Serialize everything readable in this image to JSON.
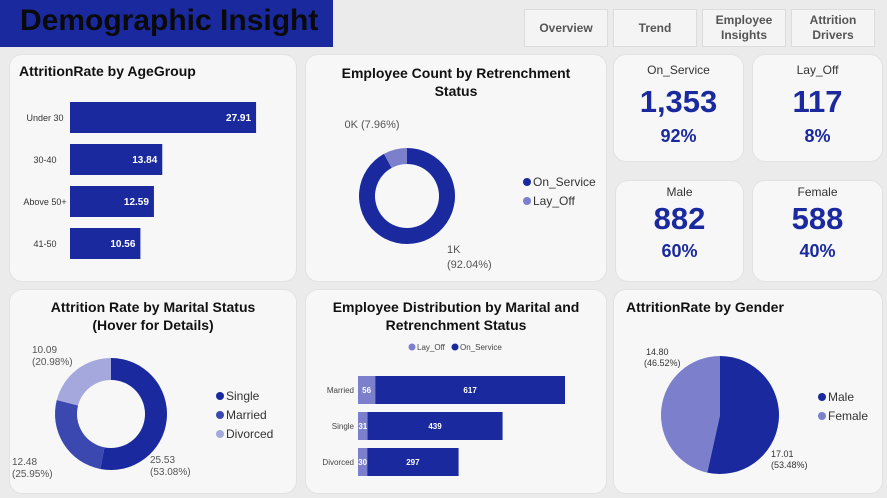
{
  "header": {
    "title": "Demographic Insight"
  },
  "nav": [
    {
      "label": "Overview"
    },
    {
      "label": "Trend"
    },
    {
      "label": "Employee Insights"
    },
    {
      "label": "Attrition Drivers"
    }
  ],
  "colors": {
    "primary": "#1a2a9e",
    "secondary": "#7b7fcc",
    "tertiary": "#a4a8dc",
    "mid": "#3b48b0"
  },
  "kpis": {
    "on_service": {
      "label": "On_Service",
      "value": "1,353",
      "pct": "92%"
    },
    "lay_off": {
      "label": "Lay_Off",
      "value": "117",
      "pct": "8%"
    },
    "male": {
      "label": "Male",
      "value": "882",
      "pct": "60%"
    },
    "female": {
      "label": "Female",
      "value": "588",
      "pct": "40%"
    }
  },
  "chart_data": [
    {
      "id": "age",
      "type": "bar",
      "orientation": "horizontal",
      "title": "AttritionRate by AgeGroup",
      "categories": [
        "Under 30",
        "30-40",
        "Above 50+",
        "41-50"
      ],
      "values": [
        27.91,
        13.84,
        12.59,
        10.56
      ],
      "value_labels": [
        "27.91",
        "13.84",
        "12.59",
        "10.56"
      ],
      "xlim": [
        0,
        30
      ]
    },
    {
      "id": "retrenchment",
      "type": "pie",
      "donut": true,
      "title": "Employee Count by Retrenchment Status",
      "categories": [
        "On_Service",
        "Lay_Off"
      ],
      "values": [
        1353,
        117
      ],
      "labels": [
        {
          "value": "1K",
          "pct": "(92.04%)"
        },
        {
          "value": "0K",
          "pct": "(7.96%)"
        }
      ],
      "legend": "right"
    },
    {
      "id": "marital_rate",
      "type": "pie",
      "donut": true,
      "title": "Attrition Rate by Marital Status",
      "subtitle": "(Hover for Details)",
      "categories": [
        "Single",
        "Married",
        "Divorced"
      ],
      "values": [
        25.53,
        12.48,
        10.09
      ],
      "labels": [
        {
          "value": "25.53",
          "pct": "(53.08%)"
        },
        {
          "value": "12.48",
          "pct": "(25.95%)"
        },
        {
          "value": "10.09",
          "pct": "(20.98%)"
        }
      ],
      "legend": "right"
    },
    {
      "id": "marital_dist",
      "type": "bar",
      "orientation": "horizontal",
      "stacked": true,
      "title": "Employee Distribution by Marital and Retrenchment Status",
      "categories": [
        "Married",
        "Single",
        "Divorced"
      ],
      "series": [
        {
          "name": "Lay_Off",
          "values": [
            56,
            31,
            30
          ]
        },
        {
          "name": "On_Service",
          "values": [
            617,
            439,
            297
          ]
        }
      ],
      "legend": "top"
    },
    {
      "id": "gender",
      "type": "pie",
      "title": "AttritionRate by Gender",
      "categories": [
        "Male",
        "Female"
      ],
      "values": [
        17.01,
        14.8
      ],
      "labels": [
        {
          "value": "17.01",
          "pct": "(53.48%)"
        },
        {
          "value": "14.80",
          "pct": "(46.52%)"
        }
      ],
      "legend": "right"
    }
  ]
}
